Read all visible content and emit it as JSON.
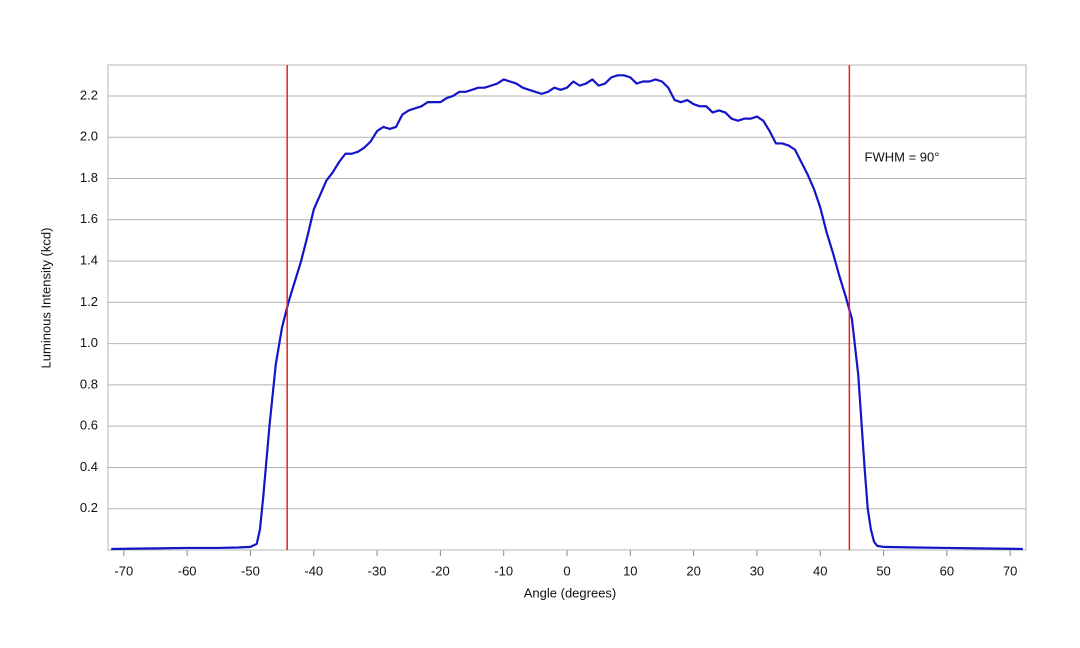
{
  "chart_data": {
    "type": "line",
    "xlabel": "Angle (degrees)",
    "ylabel": "Luminous Intensity (kcd)",
    "xlim": [
      -72.5,
      72.5
    ],
    "ylim": [
      0,
      2.35
    ],
    "xticks": [
      -70,
      -60,
      -50,
      -40,
      -30,
      -20,
      -10,
      0,
      10,
      20,
      30,
      40,
      50,
      60,
      70
    ],
    "yticks": [
      0.2,
      0.4,
      0.6,
      0.8,
      {
        "value": 1.0,
        "label": "1.0"
      },
      1.2,
      1.4,
      1.6,
      1.8,
      {
        "value": 2.0,
        "label": "2.0"
      },
      2.2
    ],
    "grid": true,
    "vlines": [
      -44.2,
      44.6
    ],
    "vline_color": "#e8211c",
    "annotation": {
      "text": "FWHM = 90°",
      "x": 47,
      "y": 1.9
    },
    "series": [
      {
        "name": "Luminous Intensity",
        "color": "#1414c8",
        "x": [
          -72,
          -65,
          -60,
          -55,
          -52,
          -50,
          -49,
          -48.5,
          -48,
          -47,
          -46,
          -45,
          -44,
          -43,
          -42,
          -41,
          -40,
          -39,
          -38,
          -37,
          -36,
          -35,
          -34,
          -33,
          -32,
          -31,
          -30,
          -29,
          -28,
          -27,
          -26,
          -25,
          -24,
          -23,
          -22,
          -21,
          -20,
          -19,
          -18,
          -17,
          -16,
          -15,
          -14,
          -13,
          -12,
          -11,
          -10,
          -9,
          -8,
          -7,
          -6,
          -5,
          -4,
          -3,
          -2,
          -1,
          0,
          1,
          2,
          3,
          4,
          5,
          6,
          7,
          8,
          9,
          10,
          11,
          12,
          13,
          14,
          15,
          16,
          17,
          18,
          19,
          20,
          21,
          22,
          23,
          24,
          25,
          26,
          27,
          28,
          29,
          30,
          31,
          32,
          33,
          34,
          35,
          36,
          37,
          38,
          39,
          40,
          41,
          42,
          43,
          44,
          45,
          46,
          47,
          47.5,
          48,
          48.5,
          49,
          50,
          55,
          60,
          65,
          72
        ],
        "values": [
          0.005,
          0.008,
          0.01,
          0.01,
          0.012,
          0.015,
          0.03,
          0.1,
          0.25,
          0.6,
          0.9,
          1.08,
          1.2,
          1.3,
          1.4,
          1.52,
          1.65,
          1.72,
          1.79,
          1.83,
          1.88,
          1.92,
          1.92,
          1.93,
          1.95,
          1.98,
          2.03,
          2.05,
          2.04,
          2.05,
          2.11,
          2.13,
          2.14,
          2.15,
          2.17,
          2.17,
          2.17,
          2.19,
          2.2,
          2.22,
          2.22,
          2.23,
          2.24,
          2.24,
          2.25,
          2.26,
          2.28,
          2.27,
          2.26,
          2.24,
          2.23,
          2.22,
          2.21,
          2.22,
          2.24,
          2.23,
          2.24,
          2.27,
          2.25,
          2.26,
          2.28,
          2.25,
          2.26,
          2.29,
          2.3,
          2.3,
          2.29,
          2.26,
          2.27,
          2.27,
          2.28,
          2.27,
          2.24,
          2.18,
          2.17,
          2.18,
          2.16,
          2.15,
          2.15,
          2.12,
          2.13,
          2.12,
          2.09,
          2.08,
          2.09,
          2.09,
          2.1,
          2.08,
          2.03,
          1.97,
          1.97,
          1.96,
          1.94,
          1.88,
          1.82,
          1.75,
          1.66,
          1.54,
          1.44,
          1.33,
          1.23,
          1.12,
          0.85,
          0.4,
          0.2,
          0.1,
          0.04,
          0.02,
          0.015,
          0.012,
          0.01,
          0.008,
          0.005
        ]
      }
    ]
  }
}
